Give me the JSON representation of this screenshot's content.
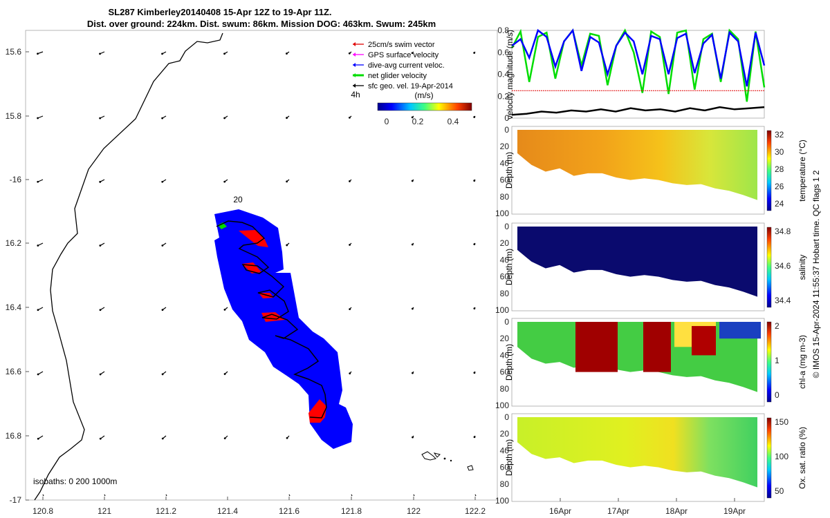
{
  "title": {
    "line1": "SL287 Kimberley20140408 15-Apr 12Z to 19-Apr 11Z.",
    "line2": "Dist. over ground: 224km. Dist. swum: 86km. Mission DOG: 463km. Swum: 245km"
  },
  "map": {
    "lon_ticks": [
      "120.8",
      "121",
      "121.2",
      "121.4",
      "121.6",
      "121.8",
      "122",
      "122.2"
    ],
    "lat_ticks": [
      "15.6",
      "15.8",
      "-16",
      "16.2",
      "16.4",
      "16.6",
      "16.8",
      "-17"
    ],
    "isobaths_label": "isobaths: 0   200  1000m",
    "marker_20": "20",
    "marker_4h": "4h",
    "legend": [
      {
        "label": "25cm/s swim vector",
        "color": "#e00000"
      },
      {
        "label": "GPS surface velocity",
        "color": "#ff00ff"
      },
      {
        "label": "dive-avg current veloc.",
        "color": "#0000ff"
      },
      {
        "label": "net glider velocity",
        "color": "#00dd00"
      },
      {
        "label": "sfc geo. vel. 19-Apr-2014",
        "color": "#000000"
      }
    ],
    "colorbar": {
      "title": "(m/s)",
      "ticks": [
        "0",
        "0.2",
        "0.4"
      ]
    }
  },
  "chart_data": [
    {
      "type": "line",
      "title": "",
      "ylabel": "velocity magnitude (m/s)",
      "ylim": [
        0,
        0.8
      ],
      "yticks": [
        "0",
        "0.2",
        "0.4",
        "0.6",
        "0.8"
      ],
      "series": [
        {
          "color": "#00dd00",
          "values": [
            0.64,
            0.79,
            0.33,
            0.74,
            0.78,
            0.36,
            0.7,
            0.8,
            0.48,
            0.77,
            0.75,
            0.3,
            0.66,
            0.8,
            0.6,
            0.23,
            0.79,
            0.74,
            0.22,
            0.78,
            0.8,
            0.26,
            0.72,
            0.77,
            0.33,
            0.8,
            0.72,
            0.15,
            0.79,
            0.28
          ]
        },
        {
          "color": "#0000ff",
          "values": [
            0.66,
            0.72,
            0.55,
            0.8,
            0.74,
            0.47,
            0.7,
            0.8,
            0.43,
            0.74,
            0.69,
            0.4,
            0.66,
            0.78,
            0.7,
            0.4,
            0.75,
            0.72,
            0.4,
            0.73,
            0.77,
            0.41,
            0.68,
            0.76,
            0.36,
            0.78,
            0.7,
            0.29,
            0.78,
            0.48
          ]
        },
        {
          "color": "#e00000",
          "values": [
            0.25,
            0.25,
            0.25,
            0.25,
            0.25,
            0.25,
            0.25,
            0.25,
            0.25,
            0.25
          ]
        },
        {
          "color": "#000000",
          "values": [
            0.03,
            0.04,
            0.06,
            0.05,
            0.07,
            0.06,
            0.08,
            0.06,
            0.09,
            0.07,
            0.08,
            0.06,
            0.09,
            0.07,
            0.1,
            0.08,
            0.09,
            0.1
          ]
        }
      ]
    },
    {
      "type": "heatmap",
      "ylabel": "Depth (m)",
      "ylim": [
        100,
        0
      ],
      "yticks": [
        "0",
        "20",
        "40",
        "60",
        "80",
        "100"
      ],
      "cbar_label": "temperature (°C)",
      "cbar_ticks": [
        "32",
        "30",
        "28",
        "26",
        "24"
      ],
      "bottom_depth": [
        28,
        42,
        50,
        46,
        55,
        52,
        52,
        57,
        60,
        58,
        60,
        64,
        66,
        65,
        70,
        73,
        78,
        84
      ]
    },
    {
      "type": "heatmap",
      "ylabel": "Depth (m)",
      "ylim": [
        100,
        0
      ],
      "yticks": [
        "0",
        "20",
        "40",
        "60",
        "80",
        "100"
      ],
      "cbar_label": "salinity",
      "cbar_ticks": [
        "34.8",
        "34.6",
        "34.4"
      ],
      "bottom_depth": [
        28,
        42,
        50,
        46,
        55,
        52,
        52,
        57,
        60,
        58,
        60,
        64,
        66,
        65,
        70,
        73,
        78,
        84
      ]
    },
    {
      "type": "heatmap",
      "ylabel": "Depth (m)",
      "ylim": [
        100,
        0
      ],
      "yticks": [
        "0",
        "20",
        "40",
        "60",
        "80",
        "100"
      ],
      "cbar_label": "chl-a (mg m-3)",
      "cbar_ticks": [
        "2",
        "1",
        "0"
      ],
      "bottom_depth": [
        30,
        44,
        50,
        48,
        55,
        52,
        52,
        57,
        60,
        58,
        60,
        64,
        66,
        65,
        70,
        73,
        78,
        84
      ]
    },
    {
      "type": "heatmap",
      "ylabel": "Depth (m)",
      "ylim": [
        100,
        0
      ],
      "yticks": [
        "0",
        "20",
        "40",
        "60",
        "80",
        "100"
      ],
      "cbar_label": "Ox. sat. ratio (%)",
      "cbar_ticks": [
        "150",
        "100",
        "50"
      ],
      "bottom_depth": [
        30,
        44,
        50,
        48,
        55,
        52,
        52,
        57,
        60,
        58,
        60,
        64,
        66,
        65,
        70,
        73,
        78,
        84
      ],
      "xticks": [
        "16Apr",
        "17Apr",
        "18Apr",
        "19Apr"
      ]
    }
  ],
  "credit": "© IMOS 15-Apr-2024 11:55:37 Hobart time. QC flags 1  2"
}
